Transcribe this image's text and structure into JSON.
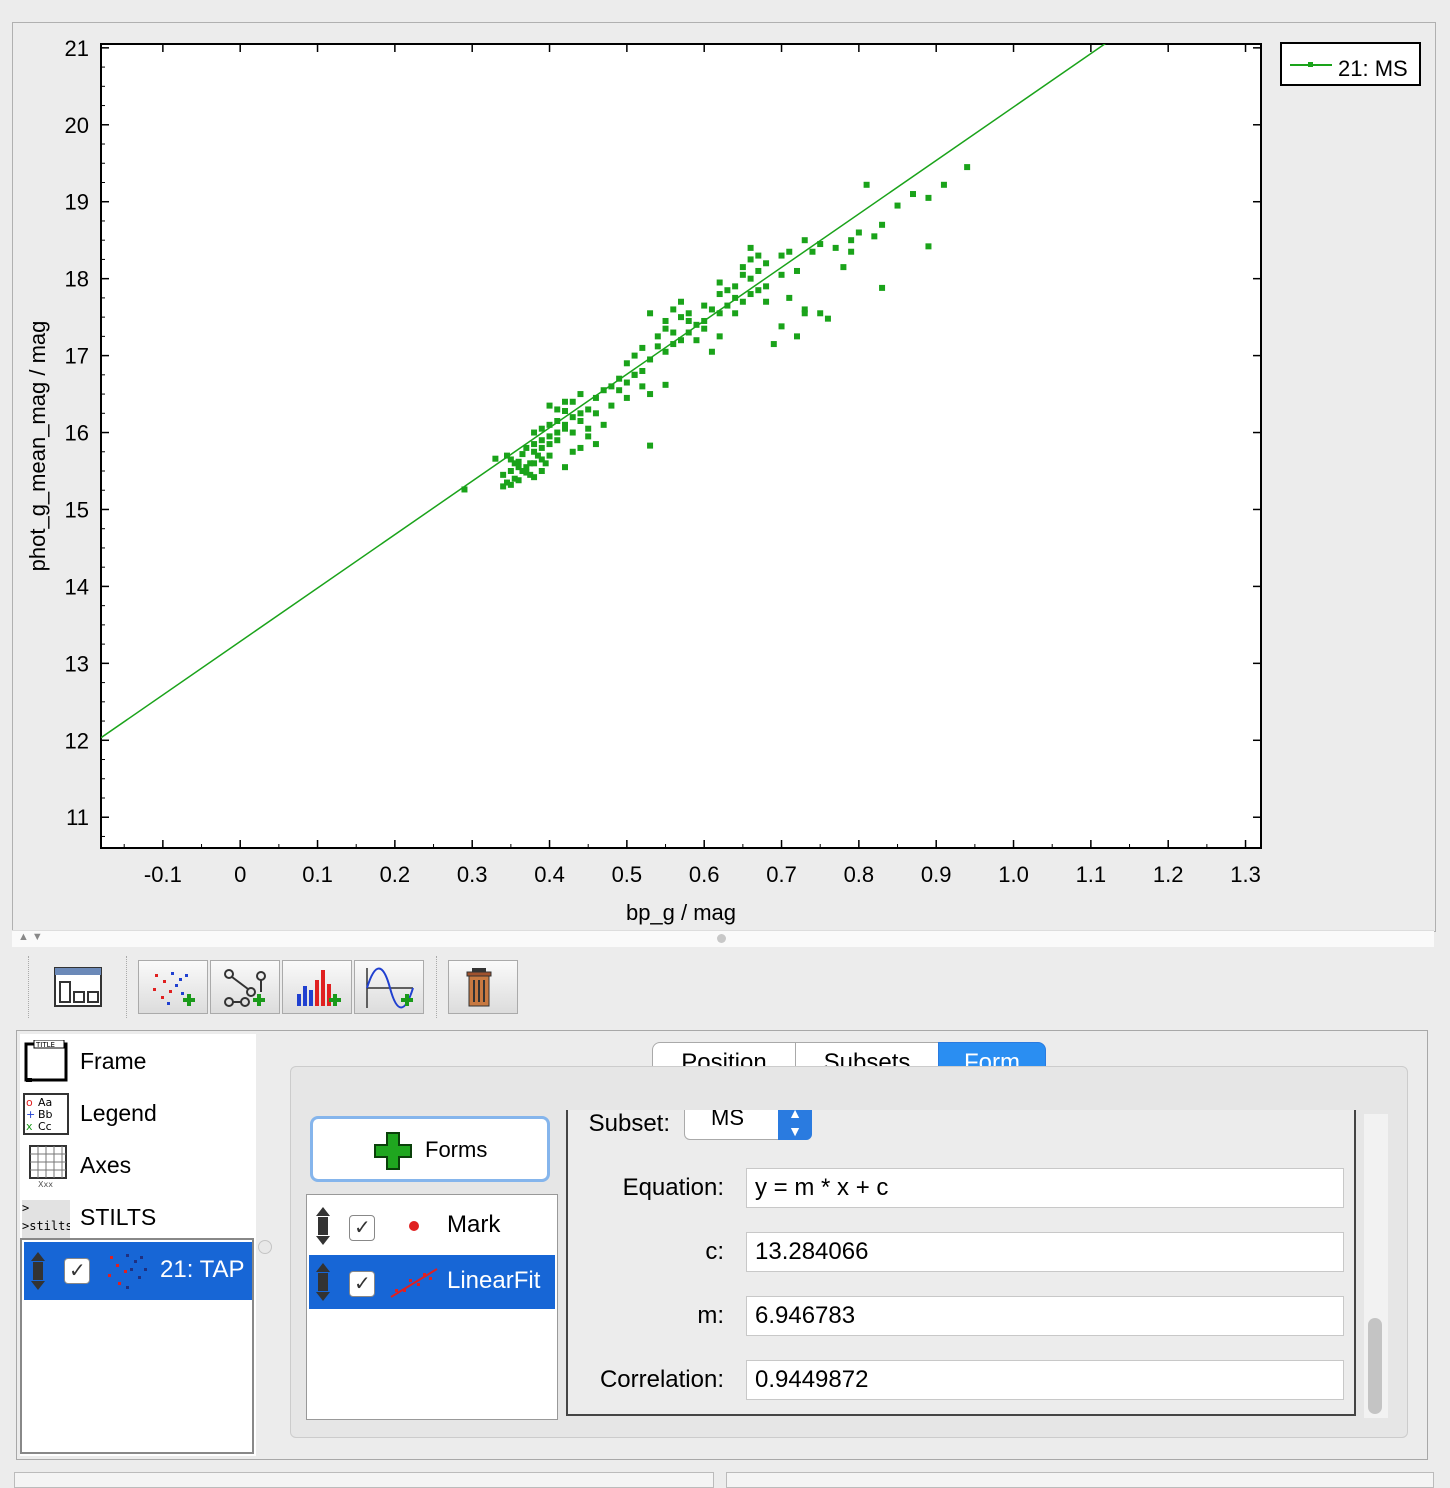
{
  "chart_data": {
    "type": "scatter",
    "xlabel": "bp_g / mag",
    "ylabel": "phot_g_mean_mag / mag",
    "xlim": [
      -0.18,
      1.32
    ],
    "ylim": [
      21.05,
      10.6
    ],
    "y_inverted": true,
    "xticks": [
      "-0.1",
      "0",
      "0.1",
      "0.2",
      "0.3",
      "0.4",
      "0.5",
      "0.6",
      "0.7",
      "0.8",
      "0.9",
      "1.0",
      "1.1",
      "1.2",
      "1.3"
    ],
    "xtick_values": [
      -0.1,
      0,
      0.1,
      0.2,
      0.3,
      0.4,
      0.5,
      0.6,
      0.7,
      0.8,
      0.9,
      1.0,
      1.1,
      1.2,
      1.3
    ],
    "yticks": [
      "11",
      "12",
      "13",
      "14",
      "15",
      "16",
      "17",
      "18",
      "19",
      "20",
      "21"
    ],
    "ytick_values": [
      11,
      12,
      13,
      14,
      15,
      16,
      17,
      18,
      19,
      20,
      21
    ],
    "legend_position": "right",
    "series": [
      {
        "name": "21: MS",
        "color": "#1aa31a",
        "fit": {
          "m": 6.946783,
          "c": 13.284066
        },
        "points": [
          [
            0.29,
            15.26
          ],
          [
            0.34,
            15.3
          ],
          [
            0.345,
            15.35
          ],
          [
            0.35,
            15.32
          ],
          [
            0.355,
            15.4
          ],
          [
            0.36,
            15.38
          ],
          [
            0.34,
            15.45
          ],
          [
            0.35,
            15.5
          ],
          [
            0.36,
            15.55
          ],
          [
            0.37,
            15.48
          ],
          [
            0.375,
            15.6
          ],
          [
            0.38,
            15.42
          ],
          [
            0.385,
            15.7
          ],
          [
            0.39,
            15.65
          ],
          [
            0.36,
            15.62
          ],
          [
            0.365,
            15.72
          ],
          [
            0.37,
            15.8
          ],
          [
            0.38,
            15.85
          ],
          [
            0.39,
            15.9
          ],
          [
            0.4,
            15.95
          ],
          [
            0.41,
            16.0
          ],
          [
            0.42,
            16.05
          ],
          [
            0.4,
            16.1
          ],
          [
            0.41,
            16.15
          ],
          [
            0.43,
            16.2
          ],
          [
            0.44,
            16.25
          ],
          [
            0.42,
            16.28
          ],
          [
            0.45,
            16.3
          ],
          [
            0.4,
            16.35
          ],
          [
            0.43,
            16.4
          ],
          [
            0.46,
            16.45
          ],
          [
            0.44,
            16.5
          ],
          [
            0.47,
            16.55
          ],
          [
            0.48,
            16.6
          ],
          [
            0.5,
            16.65
          ],
          [
            0.49,
            16.7
          ],
          [
            0.51,
            16.75
          ],
          [
            0.52,
            16.8
          ],
          [
            0.5,
            16.9
          ],
          [
            0.53,
            16.95
          ],
          [
            0.51,
            17.0
          ],
          [
            0.55,
            17.05
          ],
          [
            0.52,
            17.1
          ],
          [
            0.56,
            17.15
          ],
          [
            0.57,
            17.2
          ],
          [
            0.54,
            17.25
          ],
          [
            0.58,
            17.3
          ],
          [
            0.55,
            17.35
          ],
          [
            0.59,
            17.4
          ],
          [
            0.6,
            17.45
          ],
          [
            0.57,
            17.5
          ],
          [
            0.62,
            17.55
          ],
          [
            0.53,
            17.55
          ],
          [
            0.61,
            17.6
          ],
          [
            0.63,
            17.65
          ],
          [
            0.65,
            17.7
          ],
          [
            0.64,
            17.75
          ],
          [
            0.66,
            17.8
          ],
          [
            0.67,
            17.85
          ],
          [
            0.68,
            17.9
          ],
          [
            0.66,
            18.0
          ],
          [
            0.7,
            18.05
          ],
          [
            0.72,
            18.1
          ],
          [
            0.65,
            18.15
          ],
          [
            0.66,
            18.25
          ],
          [
            0.67,
            18.3
          ],
          [
            0.74,
            18.35
          ],
          [
            0.75,
            18.45
          ],
          [
            0.77,
            18.4
          ],
          [
            0.79,
            18.5
          ],
          [
            0.8,
            18.6
          ],
          [
            0.82,
            18.55
          ],
          [
            0.83,
            18.7
          ],
          [
            0.85,
            18.95
          ],
          [
            0.87,
            19.1
          ],
          [
            0.89,
            19.05
          ],
          [
            0.91,
            19.22
          ],
          [
            0.94,
            19.45
          ],
          [
            0.81,
            19.22
          ],
          [
            0.83,
            17.88
          ],
          [
            0.89,
            18.42
          ],
          [
            0.78,
            18.15
          ],
          [
            0.79,
            18.35
          ],
          [
            0.71,
            17.75
          ],
          [
            0.73,
            17.6
          ],
          [
            0.76,
            17.48
          ],
          [
            0.69,
            17.15
          ],
          [
            0.7,
            17.38
          ],
          [
            0.72,
            17.25
          ],
          [
            0.73,
            17.55
          ],
          [
            0.75,
            17.55
          ],
          [
            0.68,
            17.7
          ],
          [
            0.6,
            17.35
          ],
          [
            0.61,
            17.05
          ],
          [
            0.62,
            17.25
          ],
          [
            0.59,
            17.2
          ],
          [
            0.58,
            17.45
          ],
          [
            0.64,
            17.55
          ],
          [
            0.56,
            17.3
          ],
          [
            0.52,
            16.6
          ],
          [
            0.5,
            16.45
          ],
          [
            0.51,
            16.75
          ],
          [
            0.53,
            16.5
          ],
          [
            0.55,
            16.62
          ],
          [
            0.48,
            16.35
          ],
          [
            0.49,
            16.55
          ],
          [
            0.46,
            16.25
          ],
          [
            0.47,
            16.1
          ],
          [
            0.45,
            16.05
          ],
          [
            0.46,
            15.85
          ],
          [
            0.44,
            15.8
          ],
          [
            0.45,
            15.95
          ],
          [
            0.43,
            15.75
          ],
          [
            0.42,
            15.55
          ],
          [
            0.41,
            15.9
          ],
          [
            0.4,
            15.7
          ],
          [
            0.395,
            15.6
          ],
          [
            0.39,
            15.5
          ],
          [
            0.38,
            15.6
          ],
          [
            0.375,
            15.45
          ],
          [
            0.37,
            15.55
          ],
          [
            0.365,
            15.5
          ],
          [
            0.355,
            15.6
          ],
          [
            0.35,
            15.65
          ],
          [
            0.345,
            15.7
          ],
          [
            0.33,
            15.66
          ],
          [
            0.38,
            15.75
          ],
          [
            0.39,
            15.8
          ],
          [
            0.4,
            15.85
          ],
          [
            0.42,
            16.1
          ],
          [
            0.43,
            16.0
          ],
          [
            0.44,
            16.15
          ],
          [
            0.41,
            16.3
          ],
          [
            0.42,
            16.4
          ],
          [
            0.38,
            16.0
          ],
          [
            0.39,
            16.05
          ],
          [
            0.53,
            15.83
          ],
          [
            0.54,
            17.12
          ],
          [
            0.55,
            17.45
          ],
          [
            0.56,
            17.6
          ],
          [
            0.57,
            17.7
          ],
          [
            0.58,
            17.55
          ],
          [
            0.6,
            17.65
          ],
          [
            0.62,
            17.8
          ],
          [
            0.63,
            17.85
          ],
          [
            0.64,
            17.9
          ],
          [
            0.62,
            17.95
          ],
          [
            0.65,
            18.05
          ],
          [
            0.67,
            18.1
          ],
          [
            0.66,
            18.4
          ],
          [
            0.68,
            18.2
          ],
          [
            0.7,
            18.3
          ],
          [
            0.71,
            18.35
          ],
          [
            0.73,
            18.5
          ]
        ]
      }
    ]
  },
  "legend": {
    "label": "21: MS"
  },
  "layers_panel": {
    "items": [
      {
        "label": "Frame"
      },
      {
        "label": "Legend"
      },
      {
        "label": "Axes"
      },
      {
        "label": "STILTS"
      }
    ],
    "plot_layer": {
      "label": "21: TAP"
    }
  },
  "tabs": [
    "Position",
    "Subsets",
    "Form"
  ],
  "forms_button": {
    "label": "Forms"
  },
  "forms": [
    {
      "label": "Mark"
    },
    {
      "label": "LinearFit"
    }
  ],
  "form_props": {
    "subset_label": "Subset:",
    "subset_value": "MS",
    "equation_label": "Equation:",
    "equation_value": "y = m * x + c",
    "c_label": "c:",
    "c_value": "13.284066",
    "m_label": "m:",
    "m_value": "6.946783",
    "correlation_label": "Correlation:",
    "correlation_value": "0.9449872"
  }
}
